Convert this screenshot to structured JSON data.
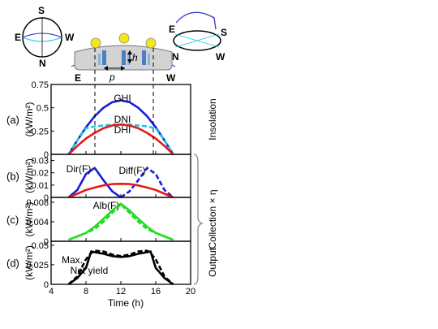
{
  "diagram": {
    "left_globe": {
      "N": "N",
      "S": "S",
      "E": "E",
      "W": "W"
    },
    "right_globe": {
      "N": "N",
      "S": "S",
      "E": "E",
      "W": "W"
    },
    "module": {
      "east": "E",
      "west": "W",
      "pitch": "p",
      "height": "h"
    }
  },
  "shared": {
    "xlabel": "Time (h)",
    "xticks": [
      "4",
      "8",
      "12",
      "16",
      "20"
    ],
    "xlim": [
      4,
      20
    ],
    "collection_label": "Collection × η"
  },
  "chart_data": [
    {
      "type": "line",
      "panel": "(a)",
      "ylabel": "(kW/m²)",
      "side_label": "Insolation",
      "ylim": [
        0,
        0.75
      ],
      "yticks": [
        "0",
        "0.25",
        "0.5",
        "0.75"
      ],
      "x": [
        6,
        7,
        8,
        9,
        10,
        11,
        12,
        13,
        14,
        15,
        16,
        17,
        18
      ],
      "series": [
        {
          "name": "GHI",
          "color": "#1a1adc",
          "dash": "solid",
          "values": [
            0,
            0.15,
            0.29,
            0.41,
            0.5,
            0.56,
            0.58,
            0.56,
            0.5,
            0.41,
            0.29,
            0.15,
            0
          ]
        },
        {
          "name": "DNI",
          "color": "#19c8e8",
          "dash": "dashed",
          "values": [
            0,
            0.15,
            0.28,
            0.3,
            0.31,
            0.32,
            0.32,
            0.32,
            0.31,
            0.3,
            0.28,
            0.15,
            0
          ]
        },
        {
          "name": "DHI",
          "color": "#e41a1a",
          "dash": "solid",
          "values": [
            0,
            0.09,
            0.17,
            0.23,
            0.28,
            0.31,
            0.32,
            0.31,
            0.28,
            0.23,
            0.17,
            0.09,
            0
          ]
        }
      ]
    },
    {
      "type": "line",
      "panel": "(b)",
      "ylabel": "(kW/m²)",
      "ylim": [
        0,
        0.035
      ],
      "yticks": [
        "0",
        "0.01",
        "0.02",
        "0.03"
      ],
      "x": [
        6,
        7,
        8,
        9,
        10,
        11,
        12,
        13,
        14,
        15,
        16,
        17,
        18
      ],
      "series": [
        {
          "name": "Dir(F)",
          "color": "#1a1adc",
          "dash": "solid",
          "values": [
            0,
            0.006,
            0.019,
            0.024,
            0.014,
            0.005,
            0,
            null,
            null,
            null,
            null,
            null,
            null
          ]
        },
        {
          "name": "Dir(F) dashed",
          "color": "#1a1adc",
          "dash": "dashed",
          "values": [
            null,
            null,
            null,
            null,
            null,
            null,
            0,
            0.005,
            0.014,
            0.024,
            0.019,
            0.006,
            0
          ]
        },
        {
          "name": "Diff(F)",
          "color": "#e41a1a",
          "dash": "solid",
          "values": [
            0,
            0.003,
            0.006,
            0.008,
            0.0098,
            0.0108,
            0.011,
            0.0108,
            0.0098,
            0.008,
            0.006,
            0.003,
            0
          ]
        }
      ]
    },
    {
      "type": "line",
      "panel": "(c)",
      "ylabel": "(kW/m²)",
      "ylim": [
        0,
        0.009
      ],
      "yticks": [
        "0",
        "0.004",
        "0.008"
      ],
      "x": [
        6,
        7,
        8,
        9,
        10,
        11,
        12,
        13,
        14,
        15,
        16,
        17,
        18
      ],
      "series": [
        {
          "name": "Alb(F)",
          "color": "#22dd22",
          "dash": "solid",
          "values": [
            0.0003,
            0.001,
            0.0017,
            0.003,
            0.0046,
            0.0063,
            0.0077,
            0.0063,
            0.0046,
            0.003,
            0.0017,
            0.001,
            0.0003
          ]
        },
        {
          "name": "Alb(F) dashed",
          "color": "#22dd22",
          "dash": "dashed",
          "values": [
            0.0003,
            0.001,
            0.0017,
            0.0025,
            0.004,
            0.0058,
            0.0076,
            0.0058,
            0.004,
            0.0025,
            0.0017,
            0.001,
            0.0003
          ]
        }
      ]
    },
    {
      "type": "line",
      "panel": "(d)",
      "ylabel": "(kW/m²)",
      "side_label": "Output",
      "ylim": [
        0,
        0.055
      ],
      "yticks": [
        "0",
        "0.025",
        "0.05"
      ],
      "x": [
        6,
        7,
        8,
        8.6,
        9,
        10,
        11,
        12,
        13,
        14,
        15,
        15.4,
        16,
        17,
        18
      ],
      "series": [
        {
          "name": "Max.",
          "color": "#000000",
          "dash": "dashed",
          "values": [
            0,
            0.01,
            0.032,
            0.04,
            0.043,
            0.042,
            0.038,
            0.036,
            0.038,
            0.042,
            0.043,
            0.04,
            0.032,
            0.01,
            0
          ]
        },
        {
          "name": "Net yield",
          "color": "#000000",
          "dash": "solid",
          "values": [
            0,
            0.008,
            0.021,
            0.042,
            0.041,
            0.039,
            0.036,
            0.035,
            0.036,
            0.039,
            0.041,
            0.042,
            0.021,
            0.008,
            0
          ]
        }
      ]
    }
  ]
}
